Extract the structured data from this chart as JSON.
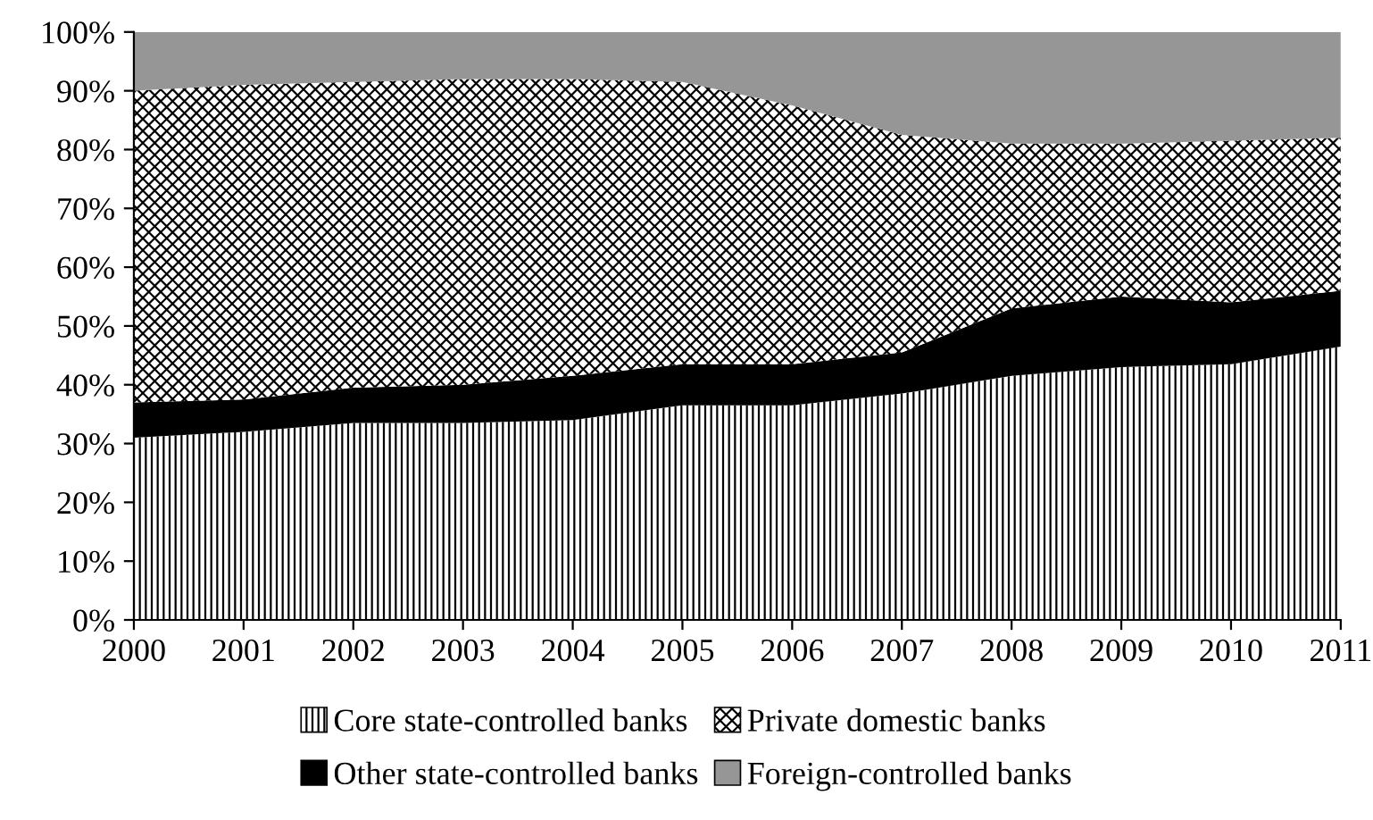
{
  "chart_data": {
    "type": "area",
    "stacked": true,
    "x": [
      2000,
      2001,
      2002,
      2003,
      2004,
      2005,
      2006,
      2007,
      2008,
      2009,
      2010,
      2011
    ],
    "series": [
      {
        "name": "Core state-controlled banks",
        "color": "#ffffff",
        "values": [
          31,
          32,
          33.5,
          33.5,
          34,
          36.5,
          36.5,
          38.5,
          41.5,
          43,
          43.5,
          46.5
        ]
      },
      {
        "name": "Other state-controlled banks",
        "color": "#000000",
        "values": [
          6,
          5.5,
          6,
          6.5,
          7.5,
          7,
          7,
          7,
          11.5,
          12,
          10.5,
          9.5
        ]
      },
      {
        "name": "Private domestic banks",
        "color": "#ffffff",
        "values": [
          53,
          53.5,
          52,
          52,
          50.5,
          48,
          44,
          37,
          28,
          26,
          27.5,
          26
        ]
      },
      {
        "name": "Foreign-controlled banks",
        "color": "#969696",
        "values": [
          10,
          9,
          8.5,
          8,
          8,
          8.5,
          12.5,
          17.5,
          19,
          19,
          18.5,
          18
        ]
      }
    ],
    "xlim": [
      2000,
      2011
    ],
    "xticks": [
      2000,
      2001,
      2002,
      2003,
      2004,
      2005,
      2006,
      2007,
      2008,
      2009,
      2010,
      2011
    ],
    "ylim": [
      0,
      100
    ],
    "yticks": [
      {
        "value": 0,
        "label": "0%"
      },
      {
        "value": 10,
        "label": "10%"
      },
      {
        "value": 20,
        "label": "20%"
      },
      {
        "value": 30,
        "label": "30%"
      },
      {
        "value": 40,
        "label": "40%"
      },
      {
        "value": 50,
        "label": "50%"
      },
      {
        "value": 60,
        "label": "60%"
      },
      {
        "value": 70,
        "label": "70%"
      },
      {
        "value": 80,
        "label": "80%"
      },
      {
        "value": 90,
        "label": "90%"
      },
      {
        "value": 100,
        "label": "100%"
      }
    ],
    "grid": false,
    "legend": "bottom"
  }
}
